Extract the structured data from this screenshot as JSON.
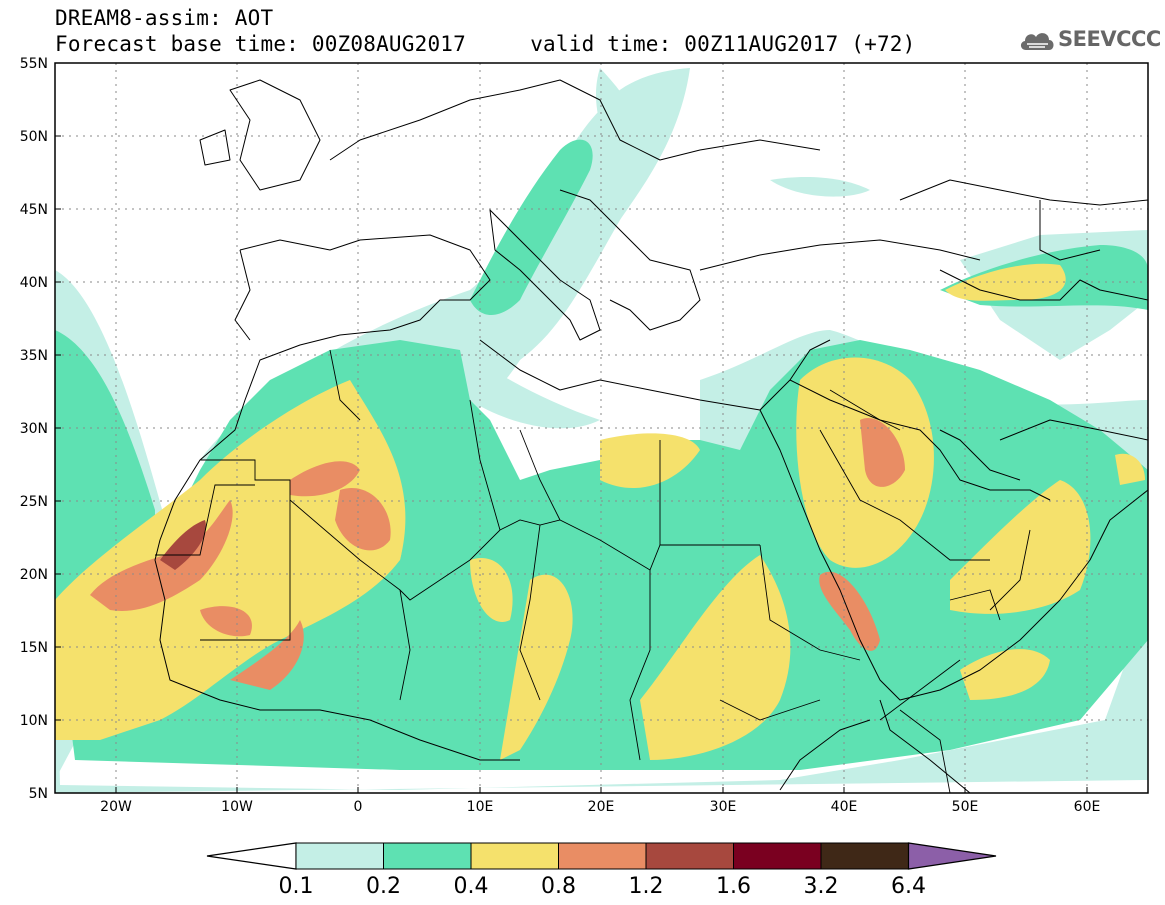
{
  "title": {
    "line1": "DREAM8-assim: AOT",
    "line2": "Forecast base time: 00Z08AUG2017     valid time: 00Z11AUG2017 (+72)"
  },
  "logo": {
    "text": "SEEVCCC",
    "icon": "cloud-icon"
  },
  "map": {
    "projection": "lat-lon",
    "lon_range": [
      -25,
      65
    ],
    "lat_range": [
      5,
      55
    ],
    "lat_ticks": [
      "55N",
      "50N",
      "45N",
      "40N",
      "35N",
      "30N",
      "25N",
      "20N",
      "15N",
      "10N",
      "5N"
    ],
    "lon_ticks": [
      "20W",
      "10W",
      "0",
      "10E",
      "20E",
      "30E",
      "40E",
      "50E",
      "60E"
    ],
    "grid": "dotted"
  },
  "colorbar": {
    "levels": [
      "0.1",
      "0.2",
      "0.4",
      "0.8",
      "1.2",
      "1.6",
      "3.2",
      "6.4"
    ],
    "colors": [
      "#c4efe6",
      "#5ee1b2",
      "#f5e16c",
      "#e98d64",
      "#a7483e",
      "#7a0020",
      "#3f2817"
    ],
    "under_color": "#ffffff",
    "over_color": "#8c5fa8"
  }
}
